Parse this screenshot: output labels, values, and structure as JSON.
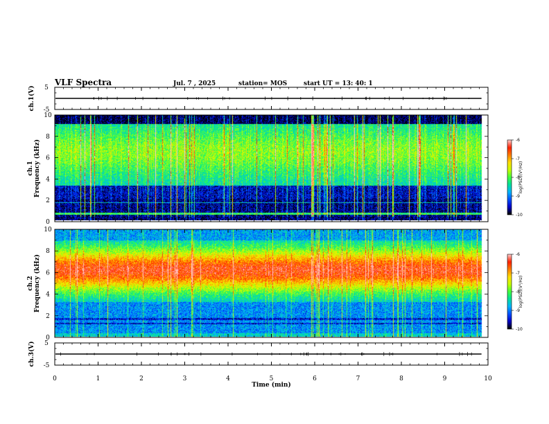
{
  "header": {
    "title": "VLF Spectra",
    "date": "Jul. 7 , 2025",
    "station": "station= MOS",
    "start": "start UT =  13: 40: 1"
  },
  "colors": {
    "scale": [
      "#000000",
      "#0000c8",
      "#0050ff",
      "#00b4ff",
      "#00e0a0",
      "#40ff40",
      "#c8ff00",
      "#ffe000",
      "#ff8000",
      "#ff2000",
      "#ffc8c8"
    ]
  },
  "chart_data": [
    {
      "type": "line",
      "panel": "ch1-waveform",
      "ylabel": "ch.1(V)",
      "ylim": [
        -5,
        5
      ],
      "yticks": [
        "5",
        "-5"
      ],
      "xlim": [
        0,
        10
      ],
      "series": [
        {
          "values_description_free": true,
          "x": [
            0,
            9.85
          ],
          "y": [
            0,
            0
          ]
        }
      ]
    },
    {
      "type": "heatmap",
      "panel": "ch1-spectrogram",
      "ylabel": "ch.1\nFrequency (kHz)",
      "ylabel_line1": "ch.1",
      "ylabel_line2": "Frequency (kHz)",
      "ylim": [
        0,
        10
      ],
      "yticks": [
        "0",
        "2",
        "4",
        "6",
        "8",
        "10"
      ],
      "xlim": [
        0,
        10
      ],
      "data_end_min": 9.85,
      "colorbar": {
        "title": "log(PSD)(V²/Hz)",
        "ticks": [
          "-6",
          "-7",
          "-8",
          "-9",
          "-10"
        ],
        "range": [
          -10,
          -6
        ]
      }
    },
    {
      "type": "heatmap",
      "panel": "ch2-spectrogram",
      "ylabel_line1": "ch.2",
      "ylabel_line2": "Frequency (kHz)",
      "ylim": [
        0,
        10
      ],
      "yticks": [
        "0",
        "2",
        "4",
        "6",
        "8",
        "10"
      ],
      "xlim": [
        0,
        10
      ],
      "data_end_min": 9.85,
      "colorbar": {
        "title": "log(PSD)(V²/Hz)",
        "ticks": [
          "-6",
          "-7",
          "-8",
          "-9",
          "-10"
        ],
        "range": [
          -10,
          -6
        ]
      }
    },
    {
      "type": "line",
      "panel": "ch3-waveform",
      "ylabel": "ch.3(V)",
      "ylim": [
        -5,
        5
      ],
      "yticks": [
        "5",
        "-5"
      ],
      "xlim": [
        0,
        10
      ],
      "series": [
        {
          "x": [
            0,
            9.85
          ],
          "y": [
            0,
            0
          ]
        }
      ]
    }
  ],
  "xaxis": {
    "label": "Time (min)",
    "ticks": [
      "0",
      "1",
      "2",
      "3",
      "4",
      "5",
      "6",
      "7",
      "8",
      "9",
      "10"
    ]
  }
}
